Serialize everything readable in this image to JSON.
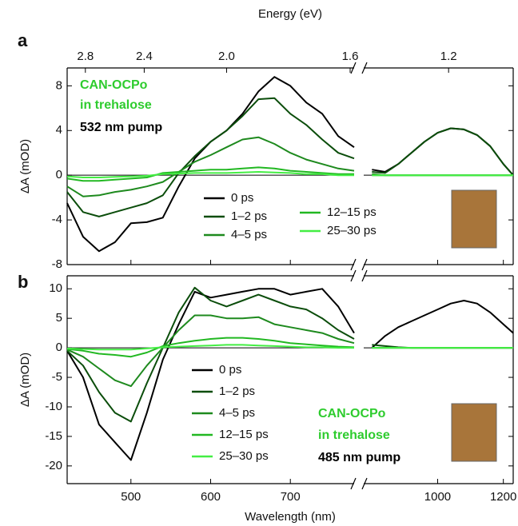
{
  "chart_data": [
    {
      "type": "line",
      "panel": "a",
      "ylabel": "ΔA (mOD)",
      "x2label": "Energy (eV)",
      "annotations": [
        {
          "text": "CAN-OCPo",
          "color": "#2ecc2e"
        },
        {
          "text": "in trehalose",
          "color": "#2ecc2e"
        },
        {
          "text": "532 nm pump",
          "color": "#000000"
        }
      ],
      "xlims": [
        [
          420,
          780
        ],
        [
          775,
          1230
        ]
      ],
      "xticks": [
        500,
        600,
        700,
        1000,
        1200
      ],
      "x2ticks": [
        2.8,
        2.4,
        {
          "value": 2,
          "label": "2.0"
        },
        1.6,
        1.2
      ],
      "ylim": [
        -8,
        9.6
      ],
      "yticks": [
        -8,
        -4,
        0,
        4,
        8
      ],
      "x": [
        420,
        440,
        460,
        480,
        500,
        520,
        540,
        560,
        580,
        600,
        620,
        640,
        660,
        680,
        700,
        720,
        740,
        760,
        780,
        800,
        840,
        880,
        920,
        960,
        1000,
        1040,
        1080,
        1120,
        1160,
        1200,
        1230
      ],
      "series": [
        {
          "name": "0 ps",
          "color": "#000000",
          "values": [
            -2.5,
            -5.5,
            -6.8,
            -6,
            -4.3,
            -4.2,
            -3.8,
            -1,
            1.5,
            3,
            4,
            5.5,
            7.5,
            8.8,
            8,
            6.5,
            5.5,
            3.5,
            2.5,
            0.5,
            0.3,
            1,
            2,
            3,
            3.8,
            4.2,
            4.1,
            3.6,
            2.6,
            1,
            0
          ]
        },
        {
          "name": "1–2 ps",
          "color": "#0b4d0b",
          "values": [
            -1.5,
            -3.3,
            -3.7,
            -3.3,
            -2.9,
            -2.5,
            -1.8,
            0.2,
            1.7,
            3,
            4,
            5.3,
            6.8,
            6.9,
            5.5,
            4.5,
            3.2,
            2,
            1.5,
            0.3,
            0.2,
            1,
            2,
            3,
            3.8,
            4.2,
            4.1,
            3.6,
            2.6,
            1,
            0
          ]
        },
        {
          "name": "4–5 ps",
          "color": "#1e8a1e",
          "values": [
            -1,
            -1.9,
            -1.8,
            -1.5,
            -1.3,
            -1,
            -0.6,
            0.3,
            1.2,
            1.8,
            2.5,
            3.2,
            3.4,
            2.8,
            2,
            1.4,
            1,
            0.6,
            0.4,
            0.1,
            0,
            0,
            0,
            0,
            0,
            0,
            0,
            0,
            0,
            0,
            0
          ]
        },
        {
          "name": "12–15 ps",
          "color": "#22b822",
          "values": [
            -0.3,
            -0.5,
            -0.5,
            -0.4,
            -0.3,
            -0.2,
            0.2,
            0.3,
            0.4,
            0.5,
            0.5,
            0.6,
            0.7,
            0.6,
            0.4,
            0.3,
            0.2,
            0.1,
            0.1,
            0,
            0,
            0,
            0,
            0,
            0,
            0,
            0,
            0,
            0,
            0,
            0
          ]
        },
        {
          "name": "25–30 ps",
          "color": "#44ee44",
          "values": [
            -0.1,
            -0.2,
            -0.2,
            -0.15,
            -0.1,
            -0.05,
            0.1,
            0.15,
            0.2,
            0.2,
            0.2,
            0.25,
            0.3,
            0.25,
            0.2,
            0.1,
            0.1,
            0,
            0,
            0,
            0,
            0,
            0,
            0,
            0,
            0,
            0,
            0,
            0,
            0,
            0
          ]
        }
      ]
    },
    {
      "type": "line",
      "panel": "b",
      "ylabel": "ΔA (mOD)",
      "xlabel": "Wavelength (nm)",
      "annotations": [
        {
          "text": "CAN-OCPo",
          "color": "#2ecc2e"
        },
        {
          "text": "in trehalose",
          "color": "#2ecc2e"
        },
        {
          "text": "485 nm pump",
          "color": "#000000"
        }
      ],
      "xlims": [
        [
          420,
          780
        ],
        [
          775,
          1230
        ]
      ],
      "xticks": [
        500,
        600,
        700,
        1000,
        1200
      ],
      "ylim": [
        -23,
        12.2
      ],
      "yticks": [
        -20,
        -15,
        -10,
        -5,
        0,
        5,
        10
      ],
      "x": [
        420,
        440,
        460,
        480,
        500,
        520,
        540,
        560,
        580,
        600,
        620,
        640,
        660,
        680,
        700,
        720,
        740,
        760,
        780,
        800,
        840,
        880,
        920,
        960,
        1000,
        1040,
        1080,
        1120,
        1160,
        1200,
        1230
      ],
      "series": [
        {
          "name": "0 ps",
          "color": "#000000",
          "values": [
            -0.5,
            -5,
            -13,
            -16,
            -19,
            -11,
            -2,
            4,
            9.5,
            8.5,
            9,
            9.5,
            10,
            10,
            9,
            9.5,
            10,
            7,
            2.5,
            0,
            2,
            3.5,
            4.5,
            5.5,
            6.5,
            7.5,
            8,
            7.5,
            6,
            4,
            2.5
          ]
        },
        {
          "name": "1–2 ps",
          "color": "#0b4d0b",
          "values": [
            -0.5,
            -3,
            -7.5,
            -11,
            -12.5,
            -6,
            0,
            6,
            10.2,
            8,
            7,
            8,
            9,
            8,
            7,
            6.5,
            5,
            3,
            1.5,
            0.5,
            0.3,
            0.1,
            0,
            0,
            0,
            0,
            0,
            0,
            0,
            0,
            0
          ]
        },
        {
          "name": "4–5 ps",
          "color": "#1e8a1e",
          "values": [
            -0.3,
            -1.5,
            -3.5,
            -5.5,
            -6.5,
            -3,
            0,
            3,
            5.5,
            5.5,
            5,
            5,
            5.2,
            4,
            3.5,
            3,
            2.5,
            1.5,
            0.8,
            0,
            0,
            0,
            0,
            0,
            0,
            0,
            0,
            0,
            0,
            0,
            0
          ]
        },
        {
          "name": "12–15 ps",
          "color": "#22b822",
          "values": [
            -0.2,
            -0.5,
            -1,
            -1.2,
            -1.5,
            -0.8,
            0.3,
            0.8,
            1.2,
            1.5,
            1.7,
            1.7,
            1.5,
            1.2,
            0.8,
            0.6,
            0.4,
            0.2,
            0.1,
            0,
            0,
            0,
            0,
            0,
            0,
            0,
            0,
            0,
            0,
            0,
            0
          ]
        },
        {
          "name": "25–30 ps",
          "color": "#44ee44",
          "values": [
            -0.1,
            -0.2,
            -0.3,
            -0.3,
            -0.3,
            -0.1,
            0.1,
            0.2,
            0.3,
            0.4,
            0.5,
            0.5,
            0.4,
            0.3,
            0.2,
            0.1,
            0.1,
            0,
            0,
            0,
            0,
            0,
            0,
            0,
            0,
            0,
            0,
            0,
            0,
            0,
            0
          ]
        }
      ]
    }
  ]
}
